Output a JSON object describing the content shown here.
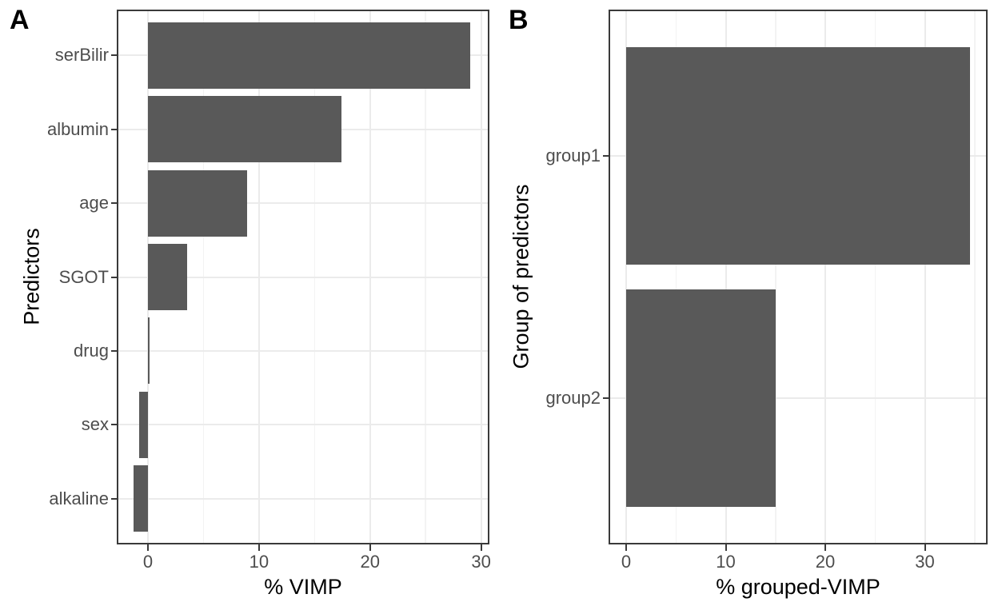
{
  "chart_data": [
    {
      "type": "bar",
      "orientation": "horizontal",
      "panel_label": "A",
      "xlabel": "% VIMP",
      "ylabel": "Predictors",
      "categories": [
        "serBilir",
        "albumin",
        "age",
        "SGOT",
        "drug",
        "sex",
        "alkaline"
      ],
      "values": [
        29.0,
        17.4,
        8.9,
        3.5,
        0.15,
        -0.8,
        -1.3
      ],
      "x_ticks": [
        0,
        10,
        20,
        30
      ],
      "x_minor_ticks": [
        5,
        15,
        25
      ],
      "xlim": [
        -2.66,
        30.6
      ],
      "grid": "on",
      "legend": "none",
      "bar_color": "#595959"
    },
    {
      "type": "bar",
      "orientation": "horizontal",
      "panel_label": "B",
      "xlabel": "% grouped-VIMP",
      "ylabel": "Group of predictors",
      "categories": [
        "group1",
        "group2"
      ],
      "values": [
        34.5,
        15.0
      ],
      "x_ticks": [
        0,
        10,
        20,
        30
      ],
      "x_minor_ticks": [
        5,
        15,
        25,
        35
      ],
      "xlim": [
        -1.61,
        36.14
      ],
      "grid": "on",
      "legend": "none",
      "bar_color": "#595959"
    }
  ],
  "colors": {
    "bar": "#595959",
    "panel_border": "#3a3a3a",
    "grid_major": "#ebebeb",
    "grid_minor": "#f3f3f3",
    "tick_label": "#4d4d4d",
    "axis_title": "#000000",
    "panel_label": "#000000",
    "background": "#ffffff"
  }
}
